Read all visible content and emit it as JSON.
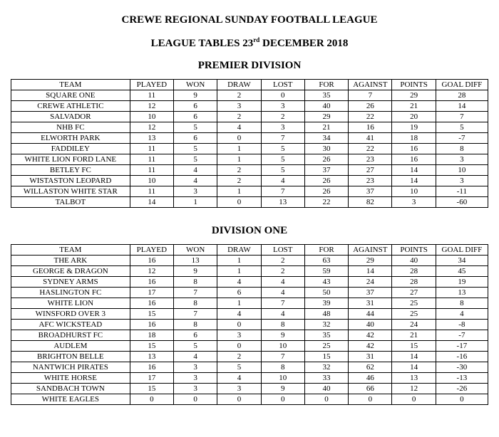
{
  "header": {
    "title": "CREWE REGIONAL SUNDAY FOOTBALL LEAGUE",
    "subtitle_prefix": "LEAGUE TABLES 23",
    "subtitle_ord": "rd",
    "subtitle_suffix": " DECEMBER 2018"
  },
  "columns": [
    "TEAM",
    "PLAYED",
    "WON",
    "DRAW",
    "LOST",
    "FOR",
    "AGAINST",
    "POINTS",
    "GOAL DIFF"
  ],
  "tables": [
    {
      "title": "PREMIER DIVISION",
      "rows": [
        [
          "SQUARE ONE",
          "11",
          "9",
          "2",
          "0",
          "35",
          "7",
          "29",
          "28"
        ],
        [
          "CREWE ATHLETIC",
          "12",
          "6",
          "3",
          "3",
          "40",
          "26",
          "21",
          "14"
        ],
        [
          "SALVADOR",
          "10",
          "6",
          "2",
          "2",
          "29",
          "22",
          "20",
          "7"
        ],
        [
          "NHB FC",
          "12",
          "5",
          "4",
          "3",
          "21",
          "16",
          "19",
          "5"
        ],
        [
          "ELWORTH PARK",
          "13",
          "6",
          "0",
          "7",
          "34",
          "41",
          "18",
          "-7"
        ],
        [
          "FADDILEY",
          "11",
          "5",
          "1",
          "5",
          "30",
          "22",
          "16",
          "8"
        ],
        [
          "WHITE LION FORD LANE",
          "11",
          "5",
          "1",
          "5",
          "26",
          "23",
          "16",
          "3"
        ],
        [
          "BETLEY FC",
          "11",
          "4",
          "2",
          "5",
          "37",
          "27",
          "14",
          "10"
        ],
        [
          "WISTASTON LEOPARD",
          "10",
          "4",
          "2",
          "4",
          "26",
          "23",
          "14",
          "3"
        ],
        [
          "WILLASTON WHITE STAR",
          "11",
          "3",
          "1",
          "7",
          "26",
          "37",
          "10",
          "-11"
        ],
        [
          "TALBOT",
          "14",
          "1",
          "0",
          "13",
          "22",
          "82",
          "3",
          "-60"
        ]
      ]
    },
    {
      "title": "DIVISION ONE",
      "rows": [
        [
          "THE ARK",
          "16",
          "13",
          "1",
          "2",
          "63",
          "29",
          "40",
          "34"
        ],
        [
          "GEORGE & DRAGON",
          "12",
          "9",
          "1",
          "2",
          "59",
          "14",
          "28",
          "45"
        ],
        [
          "SYDNEY ARMS",
          "16",
          "8",
          "4",
          "4",
          "43",
          "24",
          "28",
          "19"
        ],
        [
          "HASLINGTON FC",
          "17",
          "7",
          "6",
          "4",
          "50",
          "37",
          "27",
          "13"
        ],
        [
          "WHITE LION",
          "16",
          "8",
          "1",
          "7",
          "39",
          "31",
          "25",
          "8"
        ],
        [
          "WINSFORD OVER 3",
          "15",
          "7",
          "4",
          "4",
          "48",
          "44",
          "25",
          "4"
        ],
        [
          "AFC WICKSTEAD",
          "16",
          "8",
          "0",
          "8",
          "32",
          "40",
          "24",
          "-8"
        ],
        [
          "BROADHURST FC",
          "18",
          "6",
          "3",
          "9",
          "35",
          "42",
          "21",
          "-7"
        ],
        [
          "AUDLEM",
          "15",
          "5",
          "0",
          "10",
          "25",
          "42",
          "15",
          "-17"
        ],
        [
          "BRIGHTON BELLE",
          "13",
          "4",
          "2",
          "7",
          "15",
          "31",
          "14",
          "-16"
        ],
        [
          "NANTWICH PIRATES",
          "16",
          "3",
          "5",
          "8",
          "32",
          "62",
          "14",
          "-30"
        ],
        [
          "WHITE HORSE",
          "17",
          "3",
          "4",
          "10",
          "33",
          "46",
          "13",
          "-13"
        ],
        [
          "SANDBACH TOWN",
          "15",
          "3",
          "3",
          "9",
          "40",
          "66",
          "12",
          "-26"
        ],
        [
          "WHITE EAGLES",
          "0",
          "0",
          "0",
          "0",
          "0",
          "0",
          "0",
          "0"
        ]
      ]
    }
  ]
}
